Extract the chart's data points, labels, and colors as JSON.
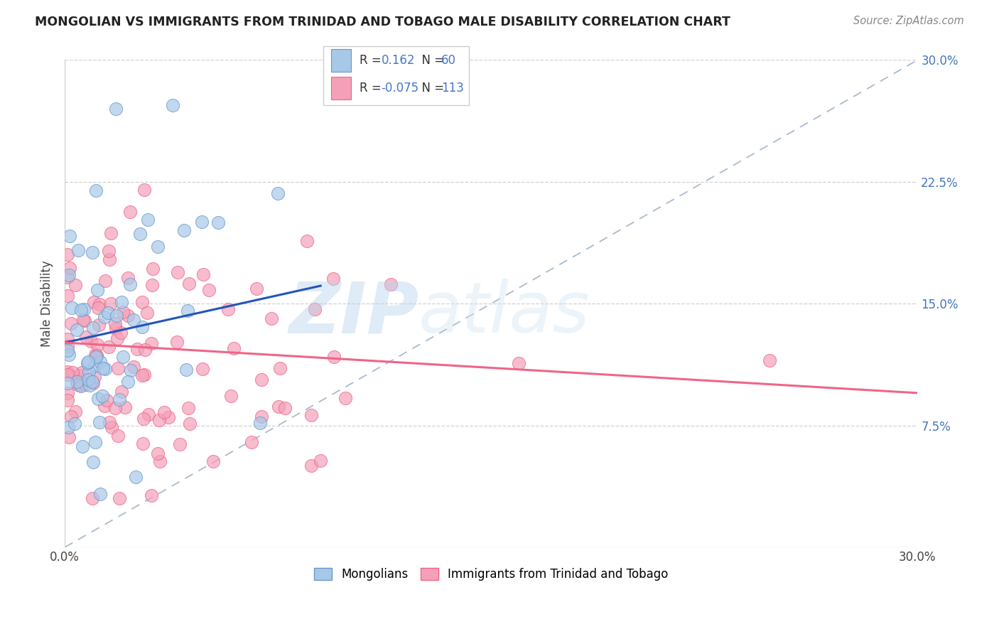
{
  "title": "MONGOLIAN VS IMMIGRANTS FROM TRINIDAD AND TOBAGO MALE DISABILITY CORRELATION CHART",
  "source": "Source: ZipAtlas.com",
  "ylabel": "Male Disability",
  "xlim": [
    0.0,
    0.3
  ],
  "ylim": [
    0.0,
    0.3
  ],
  "xtick_labels": [
    "0.0%",
    "30.0%"
  ],
  "ytick_labels": [
    "7.5%",
    "15.0%",
    "22.5%",
    "30.0%"
  ],
  "yticks": [
    0.075,
    0.15,
    0.225,
    0.3
  ],
  "legend_R1": "0.162",
  "legend_N1": "60",
  "legend_R2": "-0.075",
  "legend_N2": "113",
  "blue_fill": "#A8C8E8",
  "blue_edge": "#6699CC",
  "pink_fill": "#F4A0B8",
  "pink_edge": "#EE6688",
  "blue_line_color": "#2255BB",
  "pink_line_color": "#EE6688",
  "dashed_line_color": "#AABBCC",
  "blue_trend_x": [
    0.0,
    0.09
  ],
  "blue_trend_y": [
    0.126,
    0.161
  ],
  "pink_trend_x": [
    0.0,
    0.3
  ],
  "pink_trend_y": [
    0.126,
    0.095
  ]
}
